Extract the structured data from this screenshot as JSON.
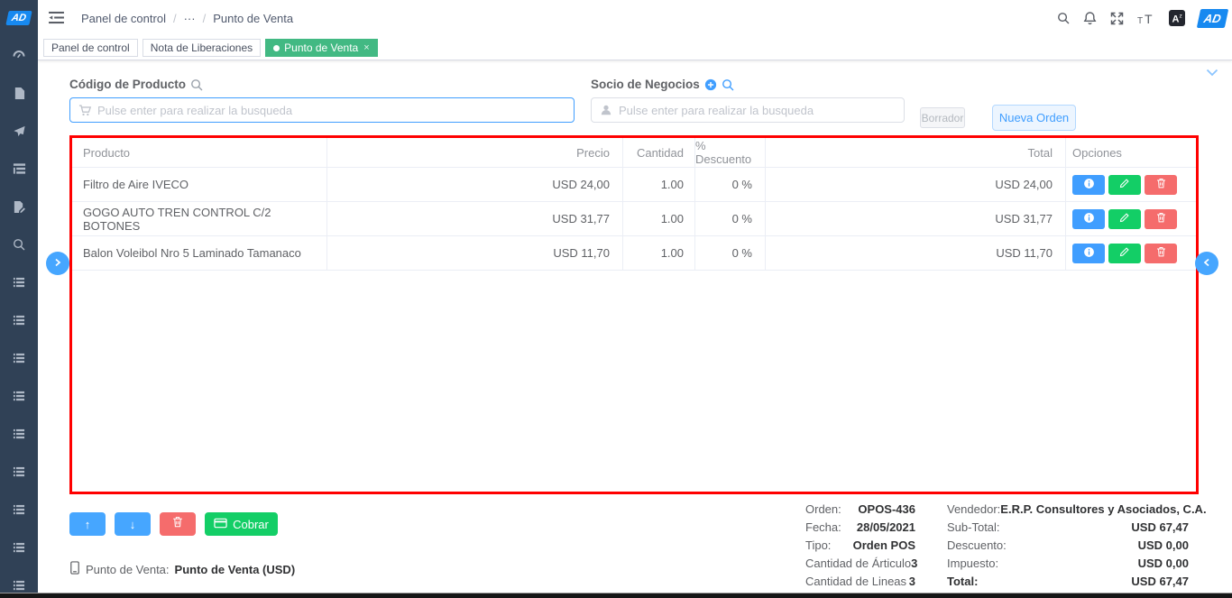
{
  "app": {
    "logo_text": "AD",
    "avatar_text": "AD",
    "accent_blue": "#409eff",
    "success_green": "#13ce66",
    "danger_red": "#f56c6c",
    "tag_active_green": "#42b983",
    "sidebar_color": "#304156",
    "selection_overlay_red": "#ff0000"
  },
  "sidebar": {
    "items": [
      {
        "icon": "dashboard-icon"
      },
      {
        "icon": "document-icon"
      },
      {
        "icon": "send-icon"
      },
      {
        "icon": "tree-list-icon"
      },
      {
        "icon": "document-edit-icon"
      },
      {
        "icon": "search-icon"
      },
      {
        "icon": "window-list-icon"
      },
      {
        "icon": "window-list-icon"
      },
      {
        "icon": "window-list-icon"
      },
      {
        "icon": "window-list-icon"
      },
      {
        "icon": "window-list-icon"
      },
      {
        "icon": "window-list-icon"
      },
      {
        "icon": "window-list-icon"
      },
      {
        "icon": "window-list-icon"
      },
      {
        "icon": "window-list-icon"
      }
    ]
  },
  "navbar": {
    "breadcrumb": [
      "Panel de control",
      "···",
      "Punto de Venta"
    ],
    "icons": [
      "search-icon",
      "bell-icon",
      "fullscreen-icon",
      "font-size-icon",
      "language-icon"
    ]
  },
  "tabs": [
    {
      "label": "Panel de control",
      "active": false,
      "closable": false
    },
    {
      "label": "Nota de Liberaciones",
      "active": false,
      "closable": false
    },
    {
      "label": "Punto de Venta",
      "active": true,
      "closable": true
    }
  ],
  "form": {
    "product_label": "Código de Producto",
    "product_placeholder": "Pulse enter para realizar la busqueda",
    "partner_label": "Socio de Negocios",
    "partner_placeholder": "Pulse enter para realizar la busqueda",
    "draft_button": "Borrador",
    "new_order_button": "Nueva Orden"
  },
  "table": {
    "columns": [
      "Producto",
      "Precio",
      "Cantidad",
      "% Descuento",
      "Total",
      "Opciones"
    ],
    "row_actions": [
      "info-icon",
      "edit-icon",
      "delete-icon"
    ],
    "rows": [
      {
        "producto": "Filtro de Aire IVECO",
        "precio": "USD 24,00",
        "cantidad": "1.00",
        "descuento": "0 %",
        "total": "USD 24,00"
      },
      {
        "producto": "GOGO AUTO TREN CONTROL C/2 BOTONES",
        "precio": "USD 31,77",
        "cantidad": "1.00",
        "descuento": "0 %",
        "total": "USD 31,77"
      },
      {
        "producto": "Balon Voleibol Nro 5 Laminado Tamanaco",
        "precio": "USD 11,70",
        "cantidad": "1.00",
        "descuento": "0 %",
        "total": "USD 11,70"
      }
    ]
  },
  "footer": {
    "move_up_label": "↑",
    "move_down_label": "↓",
    "cobrar_button": "Cobrar",
    "pos_label": "Punto de Venta:",
    "pos_value": "Punto de Venta (USD)",
    "summary_left": [
      {
        "label": "Orden:",
        "value": "OPOS-436"
      },
      {
        "label": "Fecha:",
        "value": "28/05/2021"
      },
      {
        "label": "Tipo:",
        "value": "Orden POS"
      },
      {
        "label": "Cantidad de Árticulo",
        "value": "3"
      },
      {
        "label": "Cantidad de Lineas",
        "value": "3"
      }
    ],
    "summary_right": [
      {
        "label": "Vendedor:",
        "value": "E.R.P. Consultores y Asociados, C.A.",
        "bold_label": false
      },
      {
        "label": "Sub-Total:",
        "value": "USD 67,47",
        "bold_label": false
      },
      {
        "label": "Descuento:",
        "value": "USD 0,00",
        "bold_label": false
      },
      {
        "label": "Impuesto:",
        "value": "USD 0,00",
        "bold_label": false
      },
      {
        "label": "Total:",
        "value": "USD 67,47",
        "bold_label": true
      }
    ]
  }
}
